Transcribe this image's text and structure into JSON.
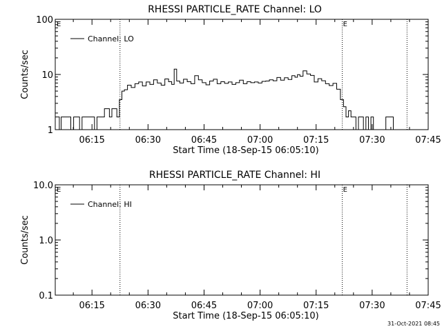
{
  "footer": {
    "timestamp": "31-Oct-2021 08:45"
  },
  "chart_data": [
    {
      "type": "line",
      "title": "RHESSI PARTICLE_RATE Channel: LO",
      "xlabel": "Start Time (18-Sep-15 06:05:10)",
      "ylabel": "Counts/sec",
      "yscale": "log",
      "ylim": [
        1,
        100
      ],
      "yticks": [
        {
          "v": 1,
          "label": "1"
        },
        {
          "v": 10,
          "label": "10"
        },
        {
          "v": 100,
          "label": "100"
        }
      ],
      "xlim": [
        "06:05:10",
        "07:45:00"
      ],
      "xticks": [
        "06:15",
        "06:30",
        "06:45",
        "07:00",
        "07:15",
        "07:30",
        "07:45"
      ],
      "legend": {
        "position": "top-left",
        "entries": [
          "Channel: LO"
        ]
      },
      "vlines": [
        {
          "x": "06:22:30",
          "label": ""
        },
        {
          "x": "07:22:00",
          "label": "E"
        },
        {
          "x": "07:39:20",
          "label": ""
        }
      ],
      "corner_markers": [
        "E"
      ],
      "series": [
        {
          "x": [
            "06:05:10",
            "06:06:00",
            "06:06:30",
            "06:07:00",
            "06:07:40",
            "06:08:20",
            "06:09:00",
            "06:09:40",
            "06:10:30",
            "06:11:20",
            "06:12:00",
            "06:12:40",
            "06:13:20",
            "06:14:00",
            "06:14:40",
            "06:15:20",
            "06:16:00",
            "06:16:40",
            "06:17:20",
            "06:18:00",
            "06:18:40",
            "06:19:20",
            "06:20:00",
            "06:20:40",
            "06:21:20",
            "06:22:00",
            "06:22:40",
            "06:23:20",
            "06:24:00",
            "06:25:00",
            "06:26:00",
            "06:27:00",
            "06:28:00",
            "06:29:00",
            "06:30:00",
            "06:31:00",
            "06:32:00",
            "06:33:00",
            "06:34:00",
            "06:35:00",
            "06:36:00",
            "06:36:40",
            "06:37:20",
            "06:38:00",
            "06:39:00",
            "06:40:00",
            "06:41:00",
            "06:42:00",
            "06:43:00",
            "06:44:00",
            "06:45:00",
            "06:46:00",
            "06:47:00",
            "06:48:00",
            "06:49:00",
            "06:50:00",
            "06:51:00",
            "06:52:00",
            "06:53:00",
            "06:54:00",
            "06:55:00",
            "06:56:00",
            "06:57:00",
            "06:58:00",
            "06:59:00",
            "07:00:00",
            "07:01:00",
            "07:02:00",
            "07:03:00",
            "07:04:00",
            "07:05:00",
            "07:06:00",
            "07:07:00",
            "07:08:00",
            "07:09:00",
            "07:09:40",
            "07:10:20",
            "07:11:00",
            "07:12:00",
            "07:13:00",
            "07:14:00",
            "07:15:00",
            "07:16:00",
            "07:17:00",
            "07:18:00",
            "07:19:00",
            "07:20:00",
            "07:21:00",
            "07:22:00",
            "07:22:40",
            "07:23:20",
            "07:24:00",
            "07:24:40",
            "07:25:20",
            "07:26:00",
            "07:26:40",
            "07:27:20",
            "07:28:00",
            "07:28:40",
            "07:29:20",
            "07:30:00",
            "07:30:40",
            "07:31:20",
            "07:32:00",
            "07:32:40",
            "07:33:20",
            "07:34:00",
            "07:34:40",
            "07:35:20",
            "07:36:00"
          ],
          "y": [
            1.7,
            1.7,
            1,
            1.7,
            1.7,
            1.7,
            1.7,
            1,
            1.7,
            1.7,
            1,
            1.7,
            1.7,
            1.7,
            1.7,
            1.7,
            1,
            1.7,
            1.7,
            1.7,
            2.4,
            2.4,
            1.7,
            2.4,
            2.4,
            1.7,
            3.5,
            5,
            5.3,
            6.4,
            5.8,
            6.8,
            7.3,
            6.2,
            7.3,
            6.6,
            8.0,
            7.0,
            6.4,
            8.3,
            7.4,
            6.6,
            12.5,
            7.6,
            7.0,
            8.2,
            7.4,
            6.8,
            9.5,
            8.0,
            7.1,
            6.5,
            7.6,
            8.2,
            6.8,
            7.4,
            6.9,
            7.3,
            6.6,
            7.1,
            7.9,
            6.8,
            7.4,
            7.1,
            7.3,
            7.0,
            7.5,
            7.6,
            8.0,
            7.7,
            8.8,
            7.9,
            8.7,
            8.1,
            9.5,
            8.9,
            9.9,
            9.3,
            11.6,
            10.2,
            9.6,
            7.3,
            8.4,
            7.7,
            6.8,
            6.3,
            6.9,
            5.4,
            3.5,
            2.6,
            1.7,
            2.2,
            1.7,
            1.7,
            1,
            1.7,
            1.7,
            1,
            1.7,
            1,
            1.7,
            1,
            1,
            1,
            1,
            1,
            1.7,
            1.7,
            1.7,
            1
          ]
        }
      ]
    },
    {
      "type": "line",
      "title": "RHESSI PARTICLE_RATE Channel: HI",
      "xlabel": "Start Time (18-Sep-15 06:05:10)",
      "ylabel": "Counts/sec",
      "yscale": "log",
      "ylim": [
        0.1,
        10
      ],
      "yticks": [
        {
          "v": 0.1,
          "label": "0.1"
        },
        {
          "v": 1,
          "label": "1.0"
        },
        {
          "v": 10,
          "label": "10.0"
        }
      ],
      "xlim": [
        "06:05:10",
        "07:45:00"
      ],
      "xticks": [
        "06:15",
        "06:30",
        "06:45",
        "07:00",
        "07:15",
        "07:30",
        "07:45"
      ],
      "legend": {
        "position": "top-left",
        "entries": [
          "Channel: HI"
        ]
      },
      "vlines": [
        {
          "x": "06:22:30",
          "label": ""
        },
        {
          "x": "07:22:00",
          "label": "E"
        },
        {
          "x": "07:39:20",
          "label": ""
        }
      ],
      "corner_markers": [
        "E"
      ],
      "series": [
        {
          "x": [],
          "y": []
        }
      ]
    }
  ]
}
